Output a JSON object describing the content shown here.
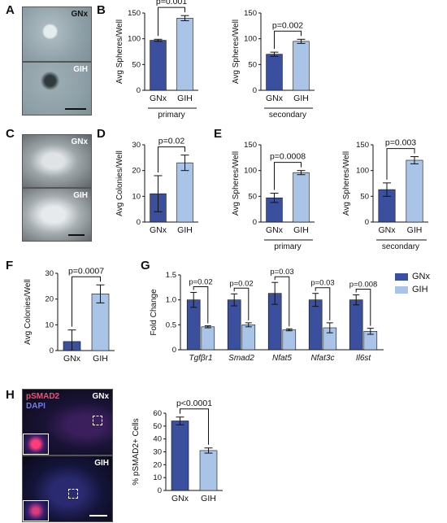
{
  "colors": {
    "gnx": "#3a4f9e",
    "gih": "#a9c4e6",
    "axis": "#111111"
  },
  "panels": {
    "A": {
      "letter": "A",
      "top_label": "GNx",
      "bottom_label": "GIH"
    },
    "B": {
      "letter": "B"
    },
    "C": {
      "letter": "C",
      "top_label": "GNx",
      "bottom_label": "GIH"
    },
    "D": {
      "letter": "D"
    },
    "E": {
      "letter": "E"
    },
    "F": {
      "letter": "F"
    },
    "G": {
      "letter": "G"
    },
    "H": {
      "letter": "H",
      "stain1": "pSMAD2",
      "stain2": "DAPI",
      "top_label": "GNx",
      "bottom_label": "GIH"
    }
  },
  "legend": {
    "items": [
      "GNx",
      "GIH"
    ]
  },
  "chart_data": [
    {
      "id": "B1",
      "type": "bar",
      "categories": [
        "GNx",
        "GIH"
      ],
      "values": [
        97,
        140
      ],
      "errors": [
        2,
        5
      ],
      "ylabel": "Avg Spheres/Well",
      "ylim": [
        0,
        150
      ],
      "yticks": [
        0,
        50,
        100,
        150
      ],
      "pvalue": "p=0.001",
      "group": "primary"
    },
    {
      "id": "B2",
      "type": "bar",
      "categories": [
        "GNx",
        "GIH"
      ],
      "values": [
        70,
        95
      ],
      "errors": [
        4,
        4
      ],
      "ylabel": "Avg Spheres/Well",
      "ylim": [
        0,
        150
      ],
      "yticks": [
        0,
        50,
        100,
        150
      ],
      "pvalue": "p=0.002",
      "group": "secondary"
    },
    {
      "id": "D",
      "type": "bar",
      "categories": [
        "GNx",
        "GIH"
      ],
      "values": [
        11,
        23
      ],
      "errors": [
        7,
        3
      ],
      "ylabel": "Avg Colonies/Well",
      "ylim": [
        0,
        30
      ],
      "yticks": [
        0,
        10,
        20,
        30
      ],
      "pvalue": "p=0.02",
      "group": ""
    },
    {
      "id": "E1",
      "type": "bar",
      "categories": [
        "GNx",
        "GIH"
      ],
      "values": [
        47,
        96
      ],
      "errors": [
        9,
        4
      ],
      "ylabel": "Avg Spheres/Well",
      "ylim": [
        0,
        150
      ],
      "yticks": [
        0,
        50,
        100,
        150
      ],
      "pvalue": "p=0.0008",
      "group": "primary"
    },
    {
      "id": "E2",
      "type": "bar",
      "categories": [
        "GNx",
        "GIH"
      ],
      "values": [
        63,
        120
      ],
      "errors": [
        13,
        7
      ],
      "ylabel": "Avg Spheres/Well",
      "ylim": [
        0,
        150
      ],
      "yticks": [
        0,
        50,
        100,
        150
      ],
      "pvalue": "p=0.003",
      "group": "secondary"
    },
    {
      "id": "F",
      "type": "bar",
      "categories": [
        "GNx",
        "GIH"
      ],
      "values": [
        3.5,
        22
      ],
      "errors": [
        4.5,
        3.5
      ],
      "ylabel": "Avg Colonies/Well",
      "ylim": [
        0,
        30
      ],
      "yticks": [
        0,
        10,
        20,
        30
      ],
      "pvalue": "p=0.0007",
      "group": ""
    },
    {
      "id": "G",
      "type": "bar",
      "categories": [
        "Tgfβr1",
        "Smad2",
        "Nfat5",
        "Nfat3c",
        "Il6st"
      ],
      "series": [
        {
          "name": "GNx",
          "values": [
            1.0,
            1.0,
            1.13,
            1.0,
            1.0
          ],
          "errors": [
            0.15,
            0.12,
            0.22,
            0.13,
            0.1
          ]
        },
        {
          "name": "GIH",
          "values": [
            0.46,
            0.5,
            0.4,
            0.44,
            0.37
          ],
          "errors": [
            0.02,
            0.04,
            0.02,
            0.1,
            0.06
          ]
        }
      ],
      "ylabel": "Fold Change",
      "ylim": [
        0,
        1.5
      ],
      "yticks": [
        "0",
        "0.5",
        "1.0",
        "1.5"
      ],
      "pvalues": [
        "p=0.02",
        "p=0.02",
        "p=0.03",
        "p=0.03",
        "p=0.008"
      ]
    },
    {
      "id": "H",
      "type": "bar",
      "categories": [
        "GNx",
        "GIH"
      ],
      "values": [
        54,
        31
      ],
      "errors": [
        3,
        2
      ],
      "ylabel": "% pSMAD2+ Cells",
      "ylim": [
        0,
        60
      ],
      "yticks": [
        0,
        10,
        20,
        30,
        40,
        50,
        60
      ],
      "pvalue": "p<0.0001",
      "group": ""
    }
  ]
}
